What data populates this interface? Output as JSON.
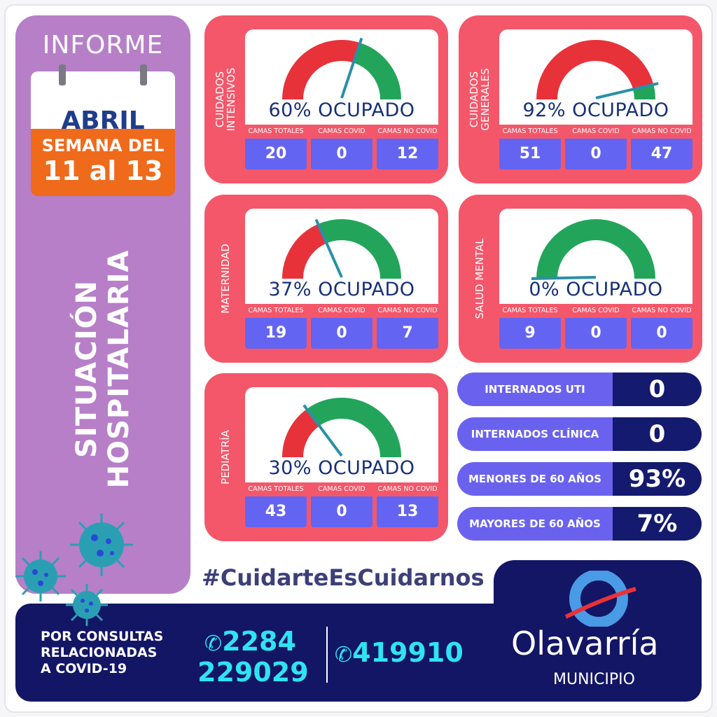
{
  "header": {
    "informe": "INFORME",
    "month": "ABRIL",
    "week_label": "SEMANA DEL",
    "week_range": "11 al 13"
  },
  "side_title": [
    "SITUACIÓN",
    "HOSPITALARIA"
  ],
  "column_headers": [
    "CAMAS TOTALES",
    "CAMAS COVID",
    "CAMAS NO COVID"
  ],
  "cards": [
    {
      "label": [
        "CUIDADOS",
        "INTENSIVOS"
      ],
      "percent": 60,
      "occupied_text": "60% OCUPADO",
      "values": [
        "20",
        "0",
        "12"
      ]
    },
    {
      "label": [
        "CUIDADOS",
        "GENERALES"
      ],
      "percent": 92,
      "occupied_text": "92% OCUPADO",
      "values": [
        "51",
        "0",
        "47"
      ]
    },
    {
      "label": [
        "MATERNIDAD"
      ],
      "percent": 37,
      "occupied_text": "37% OCUPADO",
      "values": [
        "19",
        "0",
        "7"
      ]
    },
    {
      "label": [
        "SALUD MENTAL"
      ],
      "percent": 0,
      "occupied_text": "0% OCUPADO",
      "values": [
        "9",
        "0",
        "0"
      ]
    },
    {
      "label": [
        "PEDIATRÍA"
      ],
      "percent": 30,
      "occupied_text": "30% OCUPADO",
      "values": [
        "43",
        "0",
        "13"
      ]
    }
  ],
  "stats": [
    {
      "label": "INTERNADOS UTI",
      "value": "0"
    },
    {
      "label": "INTERNADOS CLÍNICA",
      "value": "0"
    },
    {
      "label": "MENORES DE 60 AÑOS",
      "value": "93%"
    },
    {
      "label": "MAYORES DE 60 AÑOS",
      "value": "7%"
    }
  ],
  "hashtag": "#CuidarteEsCuidarnos",
  "footer": {
    "consult": [
      "POR CONSULTAS",
      "RELACIONADAS",
      "A COVID-19"
    ],
    "whatsapp": [
      "2284",
      "229029"
    ],
    "phone": "419910",
    "brand": "Olavarría",
    "brand_sub": "MUNICIPIO"
  },
  "colors": {
    "occupied": "#e8323a",
    "free": "#22a55a",
    "needle": "#2a8fa8",
    "card": "#f4576a",
    "sidebar": "#b67fc8",
    "navy": "#131565",
    "value_box": "#6464f2"
  }
}
